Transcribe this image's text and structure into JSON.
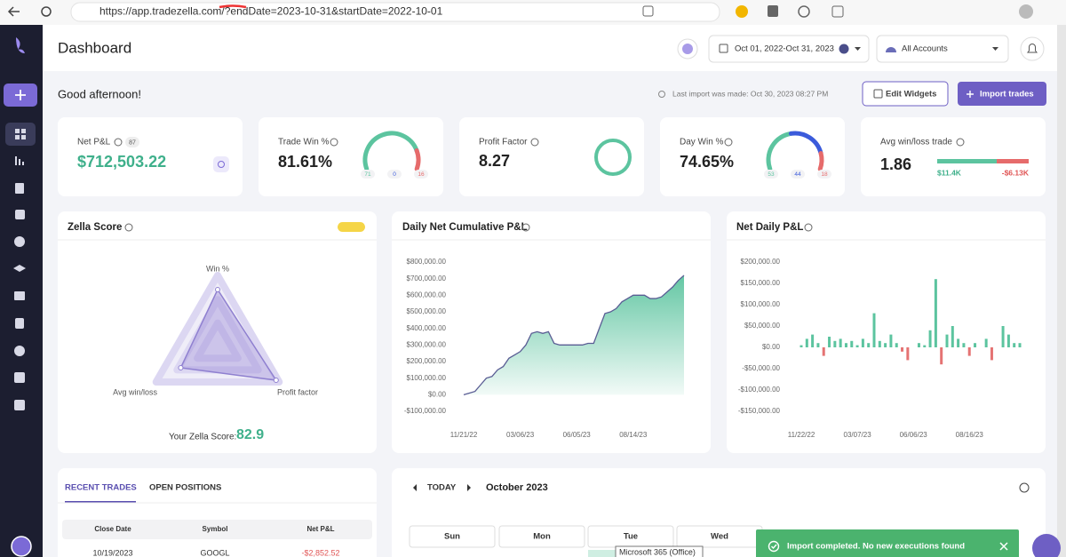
{
  "browser": {
    "url": "https://app.tradezella.com/?endDate=2023-10-31&startDate=2022-10-01"
  },
  "header": {
    "title": "Dashboard",
    "date_range": "Oct 01, 2022-Oct 31, 2023",
    "accounts": "All Accounts"
  },
  "greeting": "Good afternoon!",
  "last_import": "Last import was made: Oct 30, 2023 08:27 PM",
  "buttons": {
    "edit_widgets": "Edit Widgets",
    "import_trades": "Import trades"
  },
  "stats": {
    "net_pnl": {
      "label": "Net P&L",
      "badge": 87,
      "value": "$712,503.22"
    },
    "trade_win": {
      "label": "Trade Win %",
      "value": "81.61%",
      "wins": 71,
      "breakeven": 0,
      "losses": 16
    },
    "profit_factor": {
      "label": "Profit Factor",
      "value": "8.27"
    },
    "day_win": {
      "label": "Day Win %",
      "value": "74.65%",
      "wins": 53,
      "breakeven": 44,
      "losses": 18
    },
    "avg_win_loss": {
      "label": "Avg win/loss trade",
      "value": "1.86",
      "avg_win": 11400,
      "avg_win_label": "$11.4K",
      "avg_loss": -6130,
      "avg_loss_label": "-$6.13K"
    }
  },
  "zella": {
    "title": "Zella Score",
    "axes": [
      "Win %",
      "Profit factor",
      "Avg win/loss"
    ],
    "values": [
      80,
      95,
      60
    ],
    "score_label": "Your Zella Score:",
    "score": 82.9
  },
  "cumulative": {
    "type": "area",
    "title": "Daily Net Cumulative P&L",
    "color": "#5cc49f",
    "line_color": "#5a5d94",
    "categories": [
      "11/21/22",
      null,
      null,
      null,
      null,
      null,
      null,
      null,
      null,
      null,
      "03/06/23",
      null,
      null,
      null,
      null,
      null,
      null,
      null,
      null,
      null,
      "06/05/23",
      null,
      null,
      null,
      null,
      null,
      null,
      null,
      null,
      null,
      "08/14/23",
      null,
      null,
      null,
      null,
      null,
      null,
      null,
      null,
      null
    ],
    "values": [
      0,
      10000,
      20000,
      60000,
      100000,
      110000,
      150000,
      170000,
      220000,
      240000,
      260000,
      300000,
      370000,
      380000,
      370000,
      380000,
      310000,
      300000,
      300000,
      300000,
      300000,
      300000,
      310000,
      310000,
      400000,
      490000,
      500000,
      520000,
      560000,
      580000,
      600000,
      600000,
      600000,
      580000,
      580000,
      590000,
      620000,
      650000,
      690000,
      720000
    ],
    "ylim": [
      -100000,
      800000
    ],
    "yticks": [
      {
        "value": -100000,
        "label": "-$100,000.00"
      },
      {
        "value": 0,
        "label": "$0.00"
      },
      {
        "value": 100000,
        "label": "$100,000.00"
      },
      {
        "value": 200000,
        "label": "$200,000.00"
      },
      {
        "value": 300000,
        "label": "$300,000.00"
      },
      {
        "value": 400000,
        "label": "$400,000.00"
      },
      {
        "value": 500000,
        "label": "$500,000.00"
      },
      {
        "value": 600000,
        "label": "$600,000.00"
      },
      {
        "value": 700000,
        "label": "$700,000.00"
      },
      {
        "value": 800000,
        "label": "$800,000.00"
      }
    ]
  },
  "daily": {
    "type": "bar",
    "title": "Net Daily P&L",
    "color": "#5cc49f",
    "negative_color": "#e57373",
    "categories": [
      "11/22/22",
      null,
      null,
      null,
      null,
      null,
      null,
      null,
      null,
      null,
      "03/07/23",
      null,
      null,
      null,
      null,
      null,
      null,
      null,
      null,
      null,
      "06/06/23",
      null,
      null,
      null,
      null,
      null,
      null,
      null,
      null,
      null,
      "08/16/23",
      null,
      null,
      null,
      null,
      null,
      null,
      null,
      null,
      null
    ],
    "values": [
      5000,
      20000,
      30000,
      10000,
      -20000,
      25000,
      15000,
      20000,
      10000,
      15000,
      5000,
      20000,
      10000,
      80000,
      15000,
      10000,
      30000,
      10000,
      -10000,
      -30000,
      0,
      10000,
      5000,
      40000,
      160000,
      -40000,
      30000,
      50000,
      20000,
      10000,
      -20000,
      10000,
      0,
      20000,
      -30000,
      0,
      50000,
      30000,
      10000,
      10000
    ],
    "ylim": [
      -150000,
      200000
    ],
    "yticks": [
      {
        "value": -150000,
        "label": "-$150,000.00"
      },
      {
        "value": -100000,
        "label": "-$100,000.00"
      },
      {
        "value": -50000,
        "label": "-$50,000.00"
      },
      {
        "value": 0,
        "label": "$0.00"
      },
      {
        "value": 50000,
        "label": "$50,000.00"
      },
      {
        "value": 100000,
        "label": "$100,000.00"
      },
      {
        "value": 150000,
        "label": "$150,000.00"
      },
      {
        "value": 200000,
        "label": "$200,000.00"
      }
    ]
  },
  "trades": {
    "tabs": [
      "RECENT TRADES",
      "OPEN POSITIONS"
    ],
    "columns": [
      "Close Date",
      "Symbol",
      "Net P&L"
    ],
    "rows": [
      [
        "10/19/2023",
        "GOOGL",
        "-$2,852.52"
      ]
    ]
  },
  "calendar": {
    "today": "TODAY",
    "month": "October 2023",
    "days": [
      "Sun",
      "Mon",
      "Tue",
      "Wed"
    ]
  },
  "tooltip": "Microsoft 365 (Office)",
  "toast": "Import completed. No new executions found"
}
